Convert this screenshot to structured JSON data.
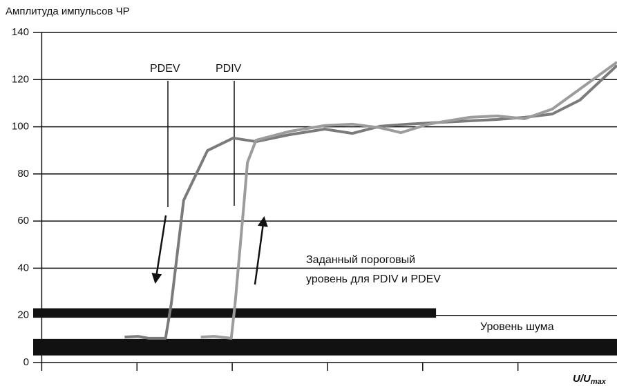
{
  "chart_data": {
    "type": "line",
    "y_label": "Амплитуда импульсов ЧР",
    "x_label": "U/U",
    "x_label_sub": "max",
    "xlim": [
      -0.09,
      6.04
    ],
    "xticks": [
      0,
      1,
      2,
      3,
      4,
      5
    ],
    "ylim": [
      0,
      140
    ],
    "yticks": [
      0,
      20,
      40,
      60,
      80,
      100,
      120,
      140
    ],
    "grid": true,
    "series": [
      {
        "name": "PDEV",
        "color": "#7b7b7b",
        "x": [
          0.87,
          1.01,
          1.12,
          1.3,
          1.36,
          1.49,
          1.74,
          2.01,
          2.25,
          2.61,
          2.97,
          3.26,
          3.55,
          3.84,
          4.2,
          4.49,
          4.78,
          5.07,
          5.36,
          5.65,
          6.04
        ],
        "values": [
          10.8,
          11.1,
          10.3,
          10.3,
          24.9,
          68.8,
          89.9,
          95.2,
          93.7,
          96.7,
          99,
          97.2,
          100.2,
          101.1,
          101.9,
          102.5,
          103.1,
          104,
          105.4,
          111.3,
          126
        ]
      },
      {
        "name": "PDIV",
        "color": "#9c9c9c",
        "x": [
          1.67,
          1.81,
          1.99,
          2.03,
          2.12,
          2.16,
          2.25,
          2.61,
          2.97,
          3.26,
          3.55,
          3.77,
          4.06,
          4.49,
          4.78,
          5.07,
          5.36,
          6.04
        ],
        "values": [
          10.8,
          11.1,
          10.3,
          24.9,
          65.9,
          84.9,
          94.3,
          98.1,
          100.5,
          101.1,
          99.6,
          97.5,
          101.1,
          104,
          104.6,
          103.4,
          107.5,
          127.4
        ]
      }
    ],
    "bands": [
      {
        "name": "threshold",
        "from": 19,
        "to": 23,
        "x_from": -0.09,
        "x_to": 4.14
      },
      {
        "name": "noise",
        "from": 3,
        "to": 10,
        "x_from": -0.09,
        "x_to": 6.04
      }
    ],
    "annotations": [
      "Заданный пороговый",
      "уровень для PDIV и PDEV",
      "Уровень шума"
    ]
  }
}
